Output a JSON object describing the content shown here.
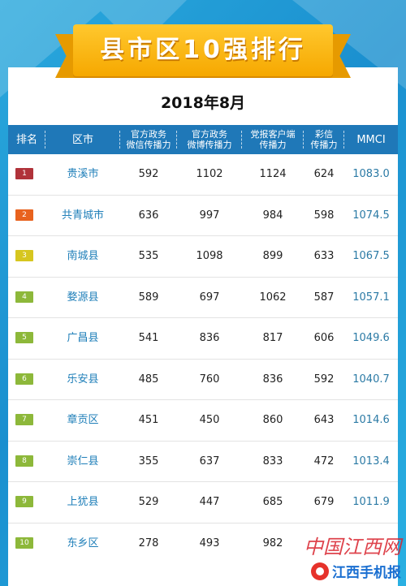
{
  "title": "县市区10强排行",
  "subtitle": "2018年8月",
  "columns": [
    {
      "line1": "排名",
      "line2": ""
    },
    {
      "line1": "区市",
      "line2": ""
    },
    {
      "line1": "官方政务",
      "line2": "微信传播力"
    },
    {
      "line1": "官方政务",
      "line2": "微博传播力"
    },
    {
      "line1": "党报客户端",
      "line2": "传播力"
    },
    {
      "line1": "彩信",
      "line2": "传播力"
    },
    {
      "line1": "MMCI",
      "line2": ""
    }
  ],
  "rows": [
    {
      "rank": "1",
      "region": "贵溪市",
      "wechat": "592",
      "weibo": "1102",
      "app": "1124",
      "mms": "624",
      "mmci": "1083.0",
      "color": "#b0323a"
    },
    {
      "rank": "2",
      "region": "共青城市",
      "wechat": "636",
      "weibo": "997",
      "app": "984",
      "mms": "598",
      "mmci": "1074.5",
      "color": "#e8621e"
    },
    {
      "rank": "3",
      "region": "南城县",
      "wechat": "535",
      "weibo": "1098",
      "app": "899",
      "mms": "633",
      "mmci": "1067.5",
      "color": "#d6c61f"
    },
    {
      "rank": "4",
      "region": "婺源县",
      "wechat": "589",
      "weibo": "697",
      "app": "1062",
      "mms": "587",
      "mmci": "1057.1",
      "color": "#8db83a"
    },
    {
      "rank": "5",
      "region": "广昌县",
      "wechat": "541",
      "weibo": "836",
      "app": "817",
      "mms": "606",
      "mmci": "1049.6",
      "color": "#8db83a"
    },
    {
      "rank": "6",
      "region": "乐安县",
      "wechat": "485",
      "weibo": "760",
      "app": "836",
      "mms": "592",
      "mmci": "1040.7",
      "color": "#8db83a"
    },
    {
      "rank": "7",
      "region": "章贡区",
      "wechat": "451",
      "weibo": "450",
      "app": "860",
      "mms": "643",
      "mmci": "1014.6",
      "color": "#8db83a"
    },
    {
      "rank": "8",
      "region": "崇仁县",
      "wechat": "355",
      "weibo": "637",
      "app": "833",
      "mms": "472",
      "mmci": "1013.4",
      "color": "#8db83a"
    },
    {
      "rank": "9",
      "region": "上犹县",
      "wechat": "529",
      "weibo": "447",
      "app": "685",
      "mms": "679",
      "mmci": "1011.9",
      "color": "#8db83a"
    },
    {
      "rank": "10",
      "region": "东乡区",
      "wechat": "278",
      "weibo": "493",
      "app": "982",
      "mms": "",
      "mmci": "",
      "color": "#8db83a"
    }
  ],
  "watermark": {
    "line1": "中国江西网",
    "line2": "江西手机报"
  },
  "colors": {
    "header_bg": "#1f78b8",
    "ribbon": "#f6a800",
    "background": "#1a8fcf"
  }
}
